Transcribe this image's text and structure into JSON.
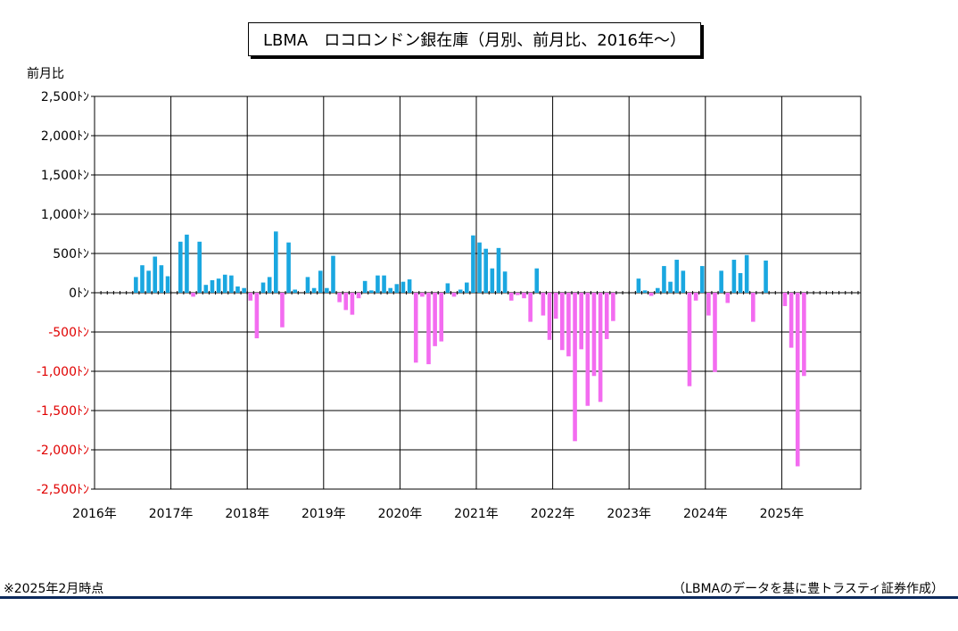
{
  "title": "LBMA　ロコロンドン銀在庫（月別、前月比、2016年～）",
  "footnote_left": "※2025年2月時点",
  "footnote_right": "（LBMAのデータを基に豊トラスティ証券作成）",
  "colors": {
    "positive": "#1aa7e0",
    "negative": "#f36cf0",
    "negative_tick_text": "#e00000",
    "grid": "#000000",
    "bottom_rule": "#0d2a5c"
  },
  "chart_data": {
    "type": "bar",
    "title": "LBMA　ロコロンドン銀在庫（月別、前月比、2016年～）",
    "ylabel": "前月比",
    "xlabel": "",
    "ylim": [
      -2500,
      2500
    ],
    "y_ticks": [
      2500,
      2000,
      1500,
      1000,
      500,
      0,
      -500,
      -1000,
      -1500,
      -2000,
      -2500
    ],
    "y_tick_labels": [
      "2,500ﾄﾝ",
      "2,000ﾄﾝ",
      "1,500ﾄﾝ",
      "1,000ﾄﾝ",
      "500ﾄﾝ",
      "0ﾄﾝ",
      "-500ﾄﾝ",
      "-1,000ﾄﾝ",
      "-1,500ﾄﾝ",
      "-2,000ﾄﾝ",
      "-2,500ﾄﾝ"
    ],
    "x_labels": [
      "2016年",
      "2017年",
      "2018年",
      "2019年",
      "2020年",
      "2021年",
      "2022年",
      "2023年",
      "2024年",
      "2025年"
    ],
    "grid": true,
    "start": "2016-01",
    "values": [
      0,
      0,
      0,
      0,
      0,
      0,
      200,
      350,
      280,
      460,
      350,
      210,
      0,
      650,
      740,
      -50,
      650,
      100,
      160,
      180,
      230,
      220,
      80,
      60,
      -100,
      -580,
      130,
      200,
      780,
      -440,
      640,
      40,
      0,
      200,
      60,
      280,
      60,
      470,
      -120,
      -220,
      -280,
      -70,
      150,
      30,
      220,
      220,
      60,
      110,
      140,
      170,
      -890,
      -50,
      -910,
      -680,
      -620,
      120,
      -50,
      40,
      130,
      730,
      640,
      560,
      310,
      570,
      270,
      -100,
      -30,
      -70,
      -370,
      310,
      -290,
      -600,
      -330,
      -730,
      -810,
      -1890,
      -720,
      -1440,
      -1060,
      -1390,
      -590,
      -360,
      0,
      0,
      0,
      180,
      30,
      -40,
      60,
      340,
      140,
      420,
      280,
      -1190,
      -100,
      340,
      -290,
      -1010,
      280,
      -130,
      420,
      250,
      480,
      -370,
      0,
      410,
      0,
      0,
      -170,
      -700,
      -2210,
      -1060,
      0,
      0,
      0,
      0,
      0,
      0,
      0,
      0
    ]
  }
}
